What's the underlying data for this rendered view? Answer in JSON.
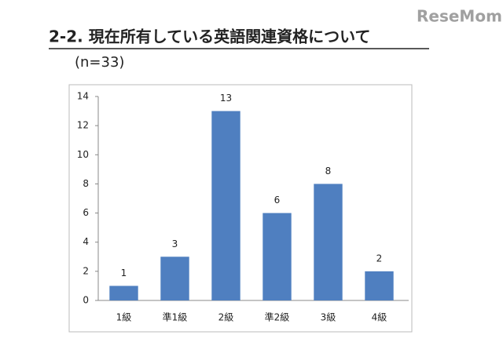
{
  "watermark": "ReseMom",
  "chart_data": {
    "type": "bar",
    "title": "2-2. 現在所有している英語関連資格について",
    "subtitle": "(n=33)",
    "categories": [
      "1級",
      "準1級",
      "2級",
      "準2級",
      "3級",
      "4級"
    ],
    "values": [
      1,
      3,
      13,
      6,
      8,
      2
    ],
    "color": "#4f7fc0",
    "ylim": [
      0,
      14
    ],
    "yticks": [
      0,
      2,
      4,
      6,
      8,
      10,
      12,
      14
    ],
    "grid": false
  }
}
